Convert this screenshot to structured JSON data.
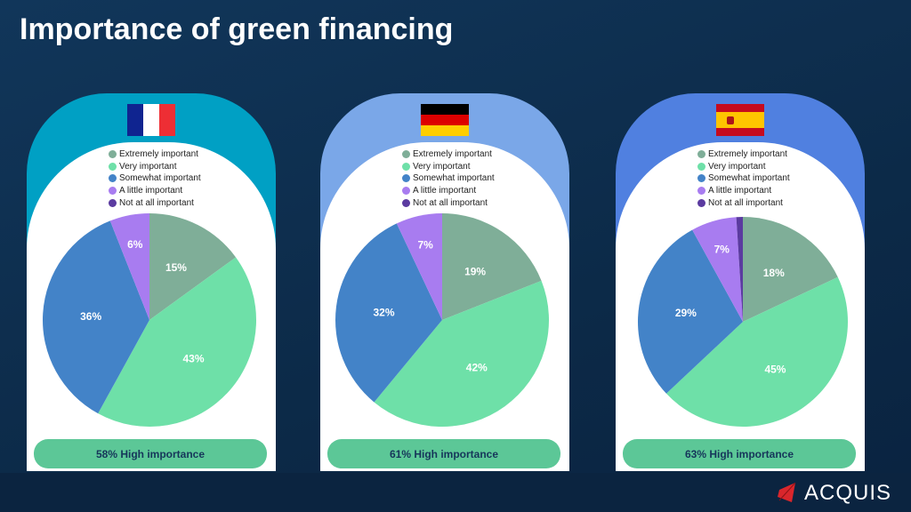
{
  "title": "Importance of green financing",
  "logo": "ACQUIS",
  "colors": {
    "extremely": "#7fae98",
    "very": "#6ee0a8",
    "somewhat": "#4383c8",
    "little": "#a87cf0",
    "not": "#5b3ba0"
  },
  "chart_data": [
    {
      "type": "pie",
      "country": "France",
      "legend": [
        "Extremely important",
        "Very important",
        "Somewhat important",
        "A little important",
        "Not at all important"
      ],
      "values": [
        15,
        43,
        36,
        6,
        0
      ],
      "labels": [
        "15%",
        "43%",
        "36%",
        "6%",
        ""
      ],
      "summary": "58% High importance"
    },
    {
      "type": "pie",
      "country": "Germany",
      "legend": [
        "Extremely important",
        "Very important",
        "Somewhat important",
        "A little important",
        "Not at all important"
      ],
      "values": [
        19,
        42,
        32,
        7,
        0
      ],
      "labels": [
        "19%",
        "42%",
        "32%",
        "7%",
        ""
      ],
      "summary": "61% High importance"
    },
    {
      "type": "pie",
      "country": "Spain",
      "legend": [
        "Extremely important",
        "Very important",
        "Somewhat important",
        "A little important",
        "Not at all important"
      ],
      "values": [
        18,
        45,
        29,
        7,
        1
      ],
      "labels": [
        "18%",
        "45%",
        "29%",
        "7%",
        ""
      ],
      "summary": "63% High importance"
    }
  ]
}
